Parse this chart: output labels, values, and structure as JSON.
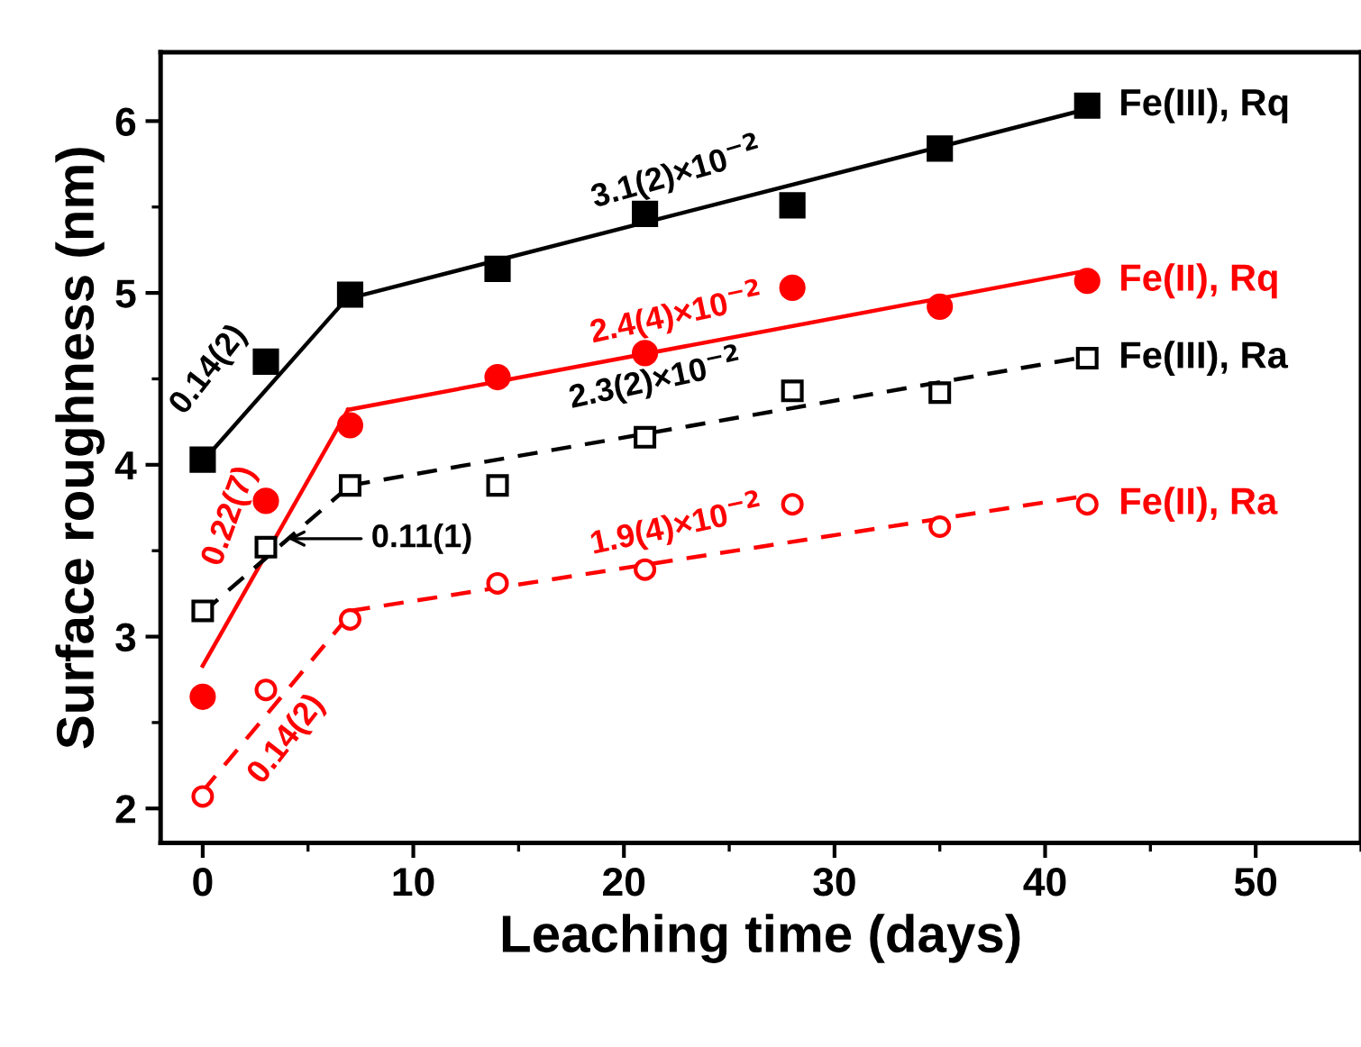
{
  "chart_data": {
    "type": "scatter",
    "xlabel": "Leaching time (days)",
    "ylabel": "Surface roughness (nm)",
    "xlim": [
      -2,
      55
    ],
    "ylim": [
      1.8,
      6.4
    ],
    "xticks": [
      0,
      10,
      20,
      30,
      40,
      50
    ],
    "yticks": [
      2,
      3,
      4,
      5,
      6
    ],
    "grid": false,
    "legend": false,
    "series": [
      {
        "name": "Fe(III), Rq",
        "color": "#000000",
        "marker": "square",
        "x": [
          0,
          3,
          7,
          14,
          21,
          28,
          35,
          42
        ],
        "values": [
          4.03,
          4.6,
          4.99,
          5.14,
          5.46,
          5.51,
          5.84,
          6.09
        ]
      },
      {
        "name": "Fe(II), Rq",
        "color": "#ff0000",
        "marker": "circle",
        "x": [
          0,
          3,
          7,
          14,
          21,
          28,
          35,
          42
        ],
        "values": [
          2.65,
          3.79,
          4.23,
          4.51,
          4.65,
          5.03,
          4.92,
          5.07
        ]
      },
      {
        "name": "Fe(III), Ra",
        "color": "#000000",
        "marker": "square",
        "x": [
          0,
          3,
          7,
          14,
          21,
          28,
          35,
          42
        ],
        "values": [
          3.15,
          3.52,
          3.88,
          3.88,
          4.16,
          4.43,
          4.42,
          4.62
        ]
      },
      {
        "name": "Fe(II), Ra",
        "color": "#ff0000",
        "marker": "circle",
        "x": [
          0,
          3,
          7,
          14,
          21,
          28,
          35,
          42
        ],
        "values": [
          2.07,
          2.69,
          3.1,
          3.31,
          3.39,
          3.77,
          3.64,
          3.77
        ]
      },
      {
        "type": "line",
        "color": "#000000",
        "line_style": "solid",
        "x": [
          0,
          7
        ],
        "values": [
          4.02,
          4.99
        ]
      },
      {
        "type": "line",
        "color": "#000000",
        "line_style": "solid",
        "x": [
          7,
          42
        ],
        "values": [
          4.97,
          6.07
        ]
      },
      {
        "type": "line",
        "color": "#ff0000",
        "line_style": "solid",
        "x": [
          0,
          6.9
        ],
        "values": [
          2.83,
          4.32
        ]
      },
      {
        "type": "line",
        "color": "#ff0000",
        "line_style": "solid",
        "x": [
          6.9,
          42
        ],
        "values": [
          4.32,
          5.13
        ]
      },
      {
        "type": "line",
        "color": "#000000",
        "line_style": "dashed",
        "x": [
          0,
          7
        ],
        "values": [
          3.14,
          3.88
        ]
      },
      {
        "type": "line",
        "color": "#000000",
        "line_style": "dashed",
        "x": [
          7,
          42
        ],
        "values": [
          3.88,
          4.63
        ]
      },
      {
        "type": "line",
        "color": "#ff0000",
        "line_style": "dashed",
        "x": [
          0,
          7
        ],
        "values": [
          2.1,
          3.13
        ]
      },
      {
        "type": "line",
        "color": "#ff0000",
        "line_style": "dashed",
        "x": [
          7,
          42
        ],
        "values": [
          3.15,
          3.82
        ]
      }
    ],
    "annotations": [
      {
        "text": "0.14(2)",
        "x": 3.5,
        "y": 4.5
      },
      {
        "text": "3.1(2)×10$^{−2}$",
        "x": 22.5,
        "y": 5.5
      },
      {
        "text": "0.22(7)",
        "x": 3.5,
        "y": 3.6
      },
      {
        "text": "2.4(4)×10$^{−2}$",
        "x": 22.5,
        "y": 4.68
      },
      {
        "text": "0.11(1)",
        "x": 3.8,
        "y": 3.57
      },
      {
        "text": "2.3(2)×10$^{−2}$",
        "x": 22.5,
        "y": 4.2
      },
      {
        "text": "0.14(2)",
        "x": 3.5,
        "y": 2.6
      },
      {
        "text": "1.9(4)×10$^{−2}$",
        "x": 22.5,
        "y": 3.45
      }
    ]
  }
}
